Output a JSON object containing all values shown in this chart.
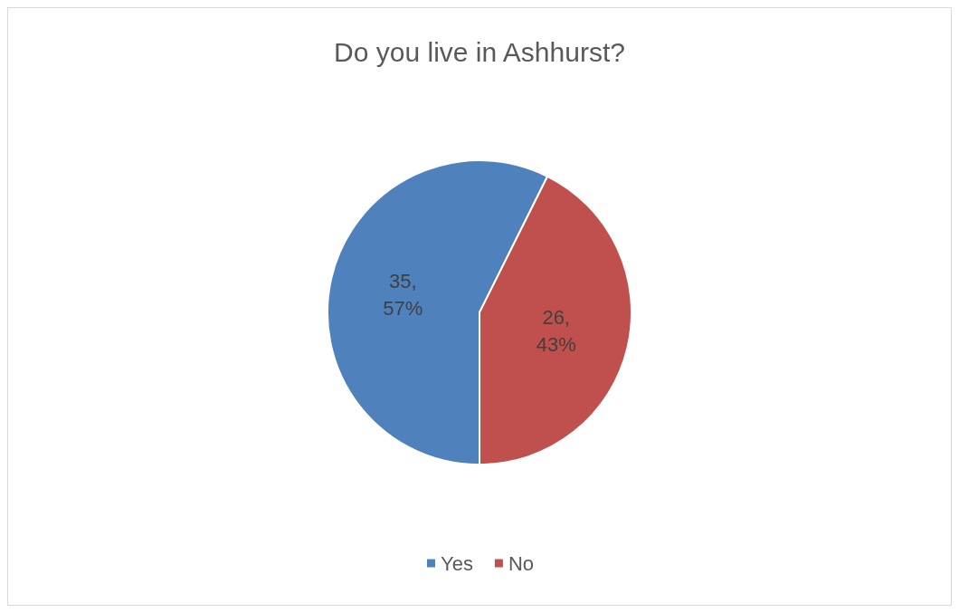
{
  "chart_data": {
    "type": "pie",
    "title": "Do you live in Ashhurst?",
    "categories": [
      "Yes",
      "No"
    ],
    "values": [
      35,
      26
    ],
    "colors": [
      "#4f81bd",
      "#c0504d"
    ],
    "value_labels": [
      "35,\n57%",
      "26,\n43%"
    ],
    "legend": "bottom"
  }
}
